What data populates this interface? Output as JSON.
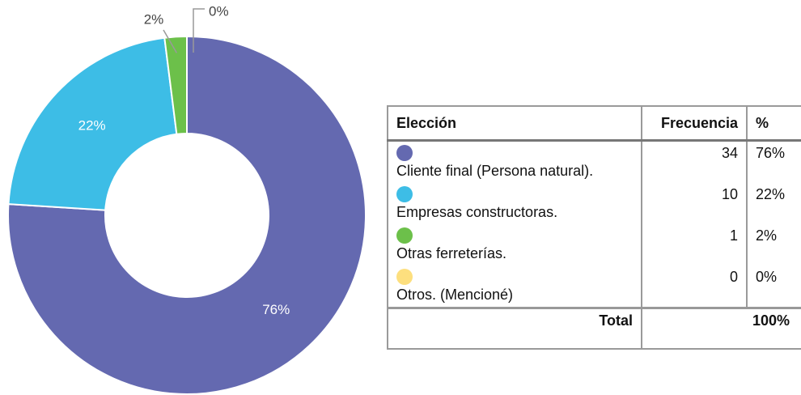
{
  "chart_data": {
    "type": "donut",
    "categories": [
      "Cliente final (Persona natural).",
      "Empresas constructoras.",
      "Otras ferreterías.",
      "Otros. (Mencioné)"
    ],
    "values": [
      76,
      22,
      2,
      0
    ],
    "value_labels": [
      "76%",
      "22%",
      "2%",
      "0%"
    ],
    "colors": [
      "#6469b0",
      "#3dbde6",
      "#6cc04a",
      "#fddf7e"
    ]
  },
  "table": {
    "headers": [
      "Elección",
      "Frecuencia",
      "%"
    ],
    "frequencies": [
      34,
      10,
      1,
      0
    ],
    "total_label": "Total",
    "total_value": "100%"
  }
}
